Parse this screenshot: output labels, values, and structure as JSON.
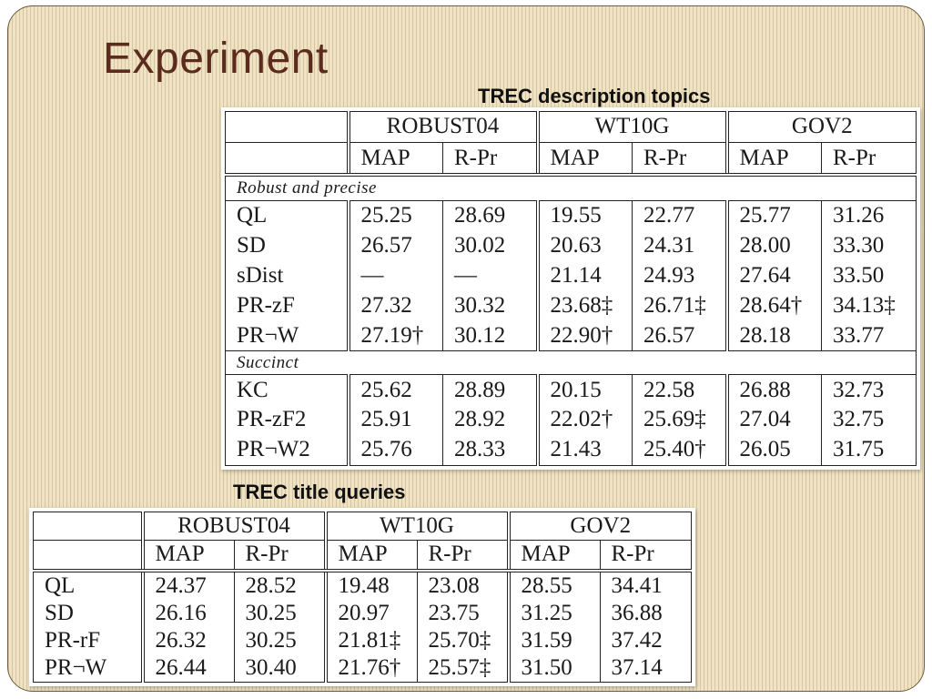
{
  "slide": {
    "title": "Experiment",
    "caption_description": "TREC description topics",
    "caption_title": "TREC title queries"
  },
  "colors": {
    "background": "#efe3c4",
    "title": "#5b2c1e",
    "frame_border": "#6e5a3c"
  },
  "desc_table": {
    "collections": [
      "ROBUST04",
      "WT10G",
      "GOV2"
    ],
    "metrics": [
      "MAP",
      "R-Pr",
      "MAP",
      "R-Pr",
      "MAP",
      "R-Pr"
    ],
    "sections": [
      {
        "label": "Robust and precise",
        "rows": [
          {
            "method": "QL",
            "values": [
              "25.25",
              "28.69",
              "19.55",
              "22.77",
              "25.77",
              "31.26"
            ],
            "bold": [
              false,
              false,
              false,
              false,
              false,
              false
            ]
          },
          {
            "method": "SD",
            "values": [
              "26.57",
              "30.02",
              "20.63",
              "24.31",
              "28.00",
              "33.30"
            ],
            "bold": [
              false,
              false,
              false,
              false,
              false,
              false
            ]
          },
          {
            "method": "sDist",
            "values": [
              "—",
              "—",
              "21.14",
              "24.93",
              "27.64",
              "33.50"
            ],
            "bold": [
              false,
              false,
              false,
              false,
              false,
              false
            ]
          },
          {
            "method": "PR-zF",
            "values": [
              "27.32",
              "30.32",
              "23.68‡",
              "26.71‡",
              "28.64†",
              "34.13‡"
            ],
            "bold": [
              true,
              true,
              true,
              true,
              true,
              true
            ]
          },
          {
            "method": "PR¬W",
            "values": [
              "27.19†",
              "30.12",
              "22.90†",
              "26.57",
              "28.18",
              "33.77"
            ],
            "bold": [
              false,
              false,
              false,
              false,
              false,
              false
            ]
          }
        ]
      },
      {
        "label": "Succinct",
        "rows": [
          {
            "method": "KC",
            "values": [
              "25.62",
              "28.89",
              "20.15",
              "22.58",
              "26.88",
              "32.73"
            ],
            "bold": [
              false,
              false,
              false,
              false,
              false,
              false
            ]
          },
          {
            "method": "PR-zF2",
            "values": [
              "25.91",
              "28.92",
              "22.02†",
              "25.69‡",
              "27.04",
              "32.75"
            ],
            "bold": [
              false,
              false,
              false,
              false,
              false,
              false
            ]
          },
          {
            "method": "PR¬W2",
            "values": [
              "25.76",
              "28.33",
              "21.43",
              "25.40†",
              "26.05",
              "31.75"
            ],
            "bold": [
              false,
              false,
              false,
              false,
              false,
              false
            ]
          }
        ]
      }
    ]
  },
  "title_table": {
    "collections": [
      "ROBUST04",
      "WT10G",
      "GOV2"
    ],
    "metrics": [
      "MAP",
      "R-Pr",
      "MAP",
      "R-Pr",
      "MAP",
      "R-Pr"
    ],
    "rows": [
      {
        "method": "QL",
        "values": [
          "24.37",
          "28.52",
          "19.48",
          "23.08",
          "28.55",
          "34.41"
        ],
        "bold": [
          false,
          false,
          false,
          false,
          false,
          false
        ]
      },
      {
        "method": "SD",
        "values": [
          "26.16",
          "30.25",
          "20.97",
          "23.75",
          "31.25",
          "36.88"
        ],
        "bold": [
          false,
          false,
          false,
          false,
          false,
          false
        ]
      },
      {
        "method": "PR-rF",
        "values": [
          "26.32",
          "30.25",
          "21.81‡",
          "25.70‡",
          "31.59",
          "37.42"
        ],
        "bold": [
          false,
          false,
          true,
          true,
          true,
          true
        ]
      },
      {
        "method": "PR¬W",
        "values": [
          "26.44",
          "30.40",
          "21.76†",
          "25.57‡",
          "31.50",
          "37.14"
        ],
        "bold": [
          true,
          true,
          false,
          false,
          false,
          false
        ]
      }
    ]
  }
}
